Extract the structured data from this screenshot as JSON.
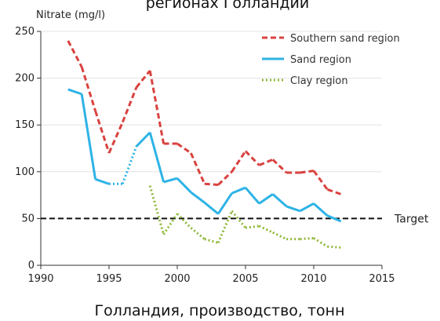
{
  "chart_data": {
    "type": "line",
    "title": "регионах Голландии",
    "caption": "Голландия, производство, тонн",
    "ylabel": "Nitrate (mg/l)",
    "xlabel": "",
    "xlim": [
      1990,
      2015
    ],
    "ylim": [
      0,
      250
    ],
    "x_ticks": [
      "1990",
      "1995",
      "2000",
      "2005",
      "2010",
      "2015"
    ],
    "y_ticks": [
      "0",
      "50",
      "100",
      "150",
      "200",
      "250"
    ],
    "grid": true,
    "legend_position": "top-right",
    "target": {
      "value": 50,
      "label": "Target",
      "color": "#111111"
    },
    "series": [
      {
        "name": "Southern sand region",
        "color": "#d9423f",
        "style": "dashed",
        "points": [
          [
            1992,
            240
          ],
          [
            1993,
            212
          ],
          [
            1994,
            165
          ],
          [
            1995,
            120
          ],
          [
            1996,
            153
          ],
          [
            1997,
            190
          ],
          [
            1998,
            208
          ],
          [
            1999,
            130
          ],
          [
            2000,
            130
          ],
          [
            2001,
            120
          ],
          [
            2002,
            87
          ],
          [
            2003,
            86
          ],
          [
            2004,
            100
          ],
          [
            2005,
            122
          ],
          [
            2006,
            107
          ],
          [
            2007,
            113
          ],
          [
            2008,
            99
          ],
          [
            2009,
            99
          ],
          [
            2010,
            101
          ],
          [
            2011,
            81
          ],
          [
            2012,
            76
          ]
        ]
      },
      {
        "name": "Sand region",
        "color": "#2eb3e6",
        "style": "solid",
        "points": [
          [
            1992,
            188
          ],
          [
            1993,
            183
          ],
          [
            1994,
            92
          ],
          [
            1995,
            87
          ],
          [
            1996,
            87
          ],
          [
            1997,
            127
          ],
          [
            1998,
            142
          ],
          [
            1999,
            89
          ],
          [
            2000,
            93
          ],
          [
            2001,
            78
          ],
          [
            2002,
            67
          ],
          [
            2003,
            55
          ],
          [
            2004,
            77
          ],
          [
            2005,
            83
          ],
          [
            2006,
            66
          ],
          [
            2007,
            76
          ],
          [
            2008,
            63
          ],
          [
            2009,
            58
          ],
          [
            2010,
            66
          ],
          [
            2011,
            53
          ],
          [
            2012,
            47
          ]
        ],
        "dotted_ranges": [
          [
            1995,
            1997
          ]
        ]
      },
      {
        "name": "Clay region",
        "color": "#8fb83a",
        "style": "dotted",
        "points": [
          [
            1998,
            85
          ],
          [
            1999,
            33
          ],
          [
            2000,
            55
          ],
          [
            2001,
            40
          ],
          [
            2002,
            28
          ],
          [
            2003,
            24
          ],
          [
            2004,
            58
          ],
          [
            2005,
            40
          ],
          [
            2006,
            42
          ],
          [
            2007,
            35
          ],
          [
            2008,
            28
          ],
          [
            2009,
            28
          ],
          [
            2010,
            29
          ],
          [
            2011,
            20
          ],
          [
            2012,
            19
          ]
        ]
      }
    ]
  }
}
